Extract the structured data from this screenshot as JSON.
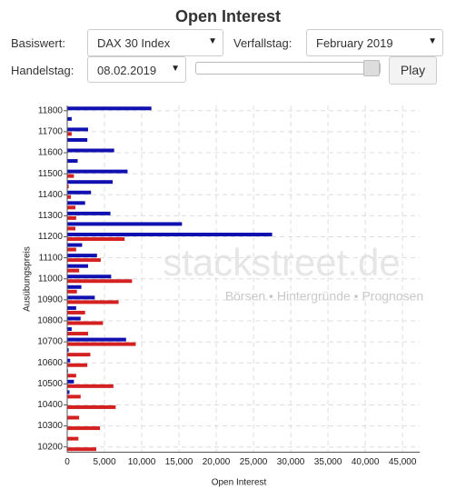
{
  "header": {
    "title": "Open Interest"
  },
  "controls": {
    "underlying_label": "Basiswert:",
    "underlying": "DAX 30 Index",
    "expiry_label": "Verfallstag:",
    "expiry": "February 2019",
    "trade_day_label": "Handelstag:",
    "trade_day": "08.02.2019",
    "play": "Play"
  },
  "watermark": {
    "brand": "stackstreet.de",
    "tagline": "Börsen • Hintergründe • Prognosen"
  },
  "chart_data": {
    "type": "hbar",
    "x_label": "Open Interest",
    "y_label": "Ausübungspreis",
    "categories": [
      "11800",
      null,
      "11700",
      null,
      "11600",
      null,
      "11500",
      null,
      "11400",
      null,
      "11300",
      null,
      "11200",
      null,
      "11100",
      null,
      "11000",
      null,
      "10900",
      null,
      "10800",
      null,
      "10700",
      null,
      "10600",
      null,
      "10500",
      null,
      "10400",
      null,
      "10300",
      null,
      "10200"
    ],
    "series": [
      {
        "color": "#1010b0",
        "values": [
          11300,
          600,
          2800,
          2700,
          6300,
          1400,
          8100,
          6100,
          3200,
          2400,
          5800,
          15400,
          27500,
          2000,
          4000,
          2800,
          5900,
          1900,
          3700,
          1200,
          1800,
          600,
          7900,
          200,
          400,
          100,
          900,
          300,
          0,
          0,
          0,
          0,
          0
        ]
      },
      {
        "color": "#d42020",
        "values": [
          0,
          0,
          600,
          0,
          0,
          0,
          900,
          200,
          500,
          1100,
          1200,
          1100,
          7700,
          1200,
          4500,
          1600,
          8700,
          1300,
          6900,
          2400,
          4800,
          2800,
          9200,
          3100,
          2700,
          1200,
          6200,
          1800,
          6500,
          1600,
          4400,
          1500,
          3900
        ]
      }
    ],
    "xlim": [
      0,
      47300
    ],
    "xticks": [
      0,
      {
        "value": 5000,
        "label": "5,000"
      },
      {
        "value": 10000,
        "label": "10,000"
      },
      {
        "value": 15000,
        "label": "15,000"
      },
      {
        "value": 20000,
        "label": "20,000"
      },
      {
        "value": 25000,
        "label": "25,000"
      },
      {
        "value": 30000,
        "label": "30,000"
      },
      {
        "value": 35000,
        "label": "35,000"
      },
      {
        "value": 40000,
        "label": "40,000"
      },
      {
        "value": 45000,
        "label": "45,000"
      }
    ],
    "grid": true
  }
}
